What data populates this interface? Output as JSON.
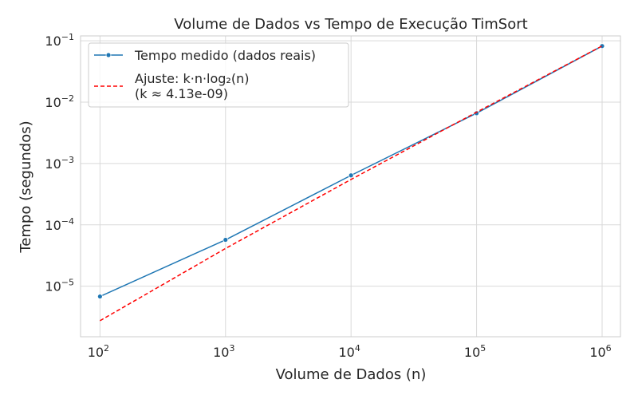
{
  "chart_data": {
    "type": "line",
    "title": "Volume de Dados vs Tempo de Execução TimSort",
    "xlabel": "Volume de Dados (n)",
    "ylabel": "Tempo (segundos)",
    "x_scale": "log",
    "y_scale": "log",
    "xlim": [
      70,
      1400000
    ],
    "ylim": [
      1.5e-06,
      0.12
    ],
    "x_ticks": [
      {
        "value": 100,
        "base": "10",
        "exp": "2"
      },
      {
        "value": 1000,
        "base": "10",
        "exp": "3"
      },
      {
        "value": 10000,
        "base": "10",
        "exp": "4"
      },
      {
        "value": 100000,
        "base": "10",
        "exp": "5"
      },
      {
        "value": 1000000,
        "base": "10",
        "exp": "6"
      }
    ],
    "y_ticks": [
      {
        "value": 1e-05,
        "base": "10",
        "exp": "−5"
      },
      {
        "value": 0.0001,
        "base": "10",
        "exp": "−4"
      },
      {
        "value": 0.001,
        "base": "10",
        "exp": "−3"
      },
      {
        "value": 0.01,
        "base": "10",
        "exp": "−2"
      },
      {
        "value": 0.1,
        "base": "10",
        "exp": "−1"
      }
    ],
    "grid": true,
    "legend_position": "top-left",
    "series": [
      {
        "name": "Tempo medido (dados reais)",
        "style": "solid-with-markers",
        "color": "#1f77b4",
        "x": [
          100,
          1000,
          10000,
          100000,
          1000000
        ],
        "y": [
          6.8e-06,
          5.7e-05,
          0.00064,
          0.0066,
          0.082
        ]
      },
      {
        "name_lines": [
          "Ajuste: k·n·log₂(n)",
          "(k ≈ 4.13e-09)"
        ],
        "style": "dashed",
        "color": "#ff0000",
        "x": [
          100,
          1000,
          10000,
          100000,
          1000000
        ],
        "y": [
          2.74e-06,
          4.12e-05,
          0.000549,
          0.00686,
          0.0823
        ]
      }
    ]
  }
}
